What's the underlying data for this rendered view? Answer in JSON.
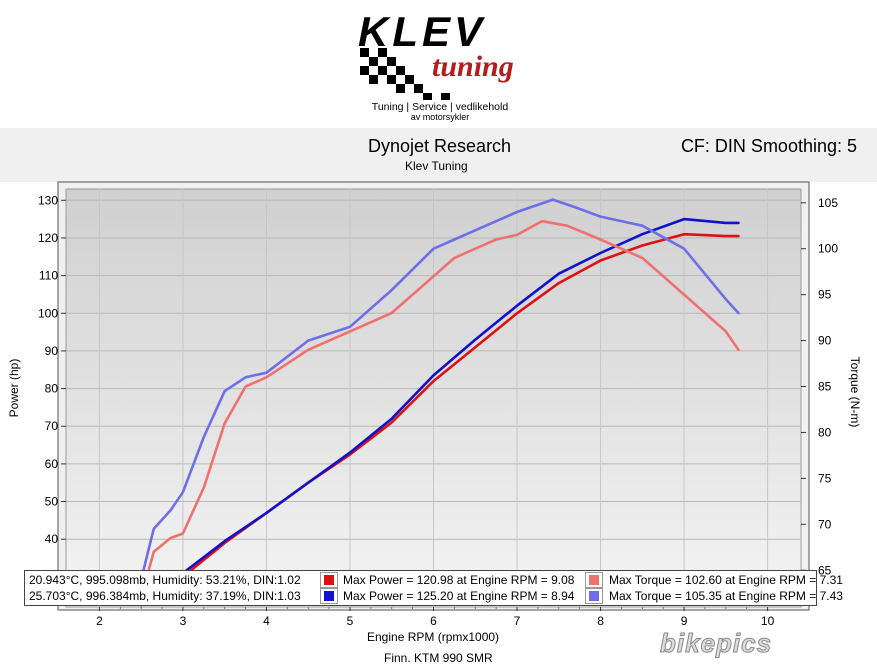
{
  "logo": {
    "brand": "KLEV",
    "script": "tuning",
    "tagline1": "Tuning | Service | vedlikehold",
    "tagline2": "av motorsykler"
  },
  "header": {
    "title": "Dynojet Research",
    "subtitle": "Klev Tuning",
    "cf_info": "CF: DIN Smoothing: 5"
  },
  "footer": {
    "xlabel": "Engine RPM (rpmx1000)",
    "note": "Finn. KTM 990 SMR",
    "watermark": "bikepics"
  },
  "legend": {
    "rows": [
      {
        "conditions": "20.943°C, 995.098mb, Humidity: 53.21%, DIN:1.02",
        "power": "Max Power = 120.98 at Engine RPM = 9.08",
        "torque": "Max Torque = 102.60 at Engine RPM = 7.31",
        "power_color": "#dd1111",
        "torque_color": "#f07070"
      },
      {
        "conditions": "25.703°C, 996.384mb, Humidity: 37.19%, DIN:1.03",
        "power": "Max Power = 125.20 at Engine RPM = 8.94",
        "torque": "Max Torque = 105.35 at Engine RPM = 7.43",
        "power_color": "#1111cc",
        "torque_color": "#6e6ee8"
      }
    ]
  },
  "chart_data": {
    "type": "line",
    "xlabel": "Engine RPM (rpmx1000)",
    "ylabel": "Power (hp)",
    "y2label": "Torque (N-m)",
    "xlim": [
      1.6,
      10.4
    ],
    "ylim": [
      22,
      133
    ],
    "y2lim": [
      61,
      106.5
    ],
    "xticks": [
      2,
      3,
      4,
      5,
      6,
      7,
      8,
      9,
      10
    ],
    "yticks": [
      30,
      40,
      50,
      60,
      70,
      80,
      90,
      100,
      110,
      120,
      130
    ],
    "y2ticks": [
      65,
      70,
      75,
      80,
      85,
      90,
      95,
      100,
      105
    ],
    "grid": true,
    "series": [
      {
        "axis": "left",
        "color": "#dd1111",
        "x": [
          2.5,
          2.75,
          3.0,
          3.5,
          4.0,
          4.5,
          5.0,
          5.5,
          6.0,
          6.5,
          7.0,
          7.5,
          8.0,
          8.5,
          9.0,
          9.5,
          9.65
        ],
        "y": [
          22.5,
          26.0,
          30.0,
          39.0,
          47.0,
          55.0,
          62.5,
          71.0,
          82.0,
          91.0,
          100.0,
          108.0,
          114.0,
          118.0,
          121.0,
          120.5,
          120.5
        ]
      },
      {
        "axis": "left",
        "color": "#1111cc",
        "x": [
          2.5,
          2.75,
          3.0,
          3.5,
          4.0,
          4.5,
          5.0,
          5.5,
          6.0,
          6.5,
          7.0,
          7.5,
          8.0,
          8.5,
          9.0,
          9.5,
          9.65
        ],
        "y": [
          23.5,
          27.5,
          31.0,
          39.5,
          47.0,
          55.0,
          63.0,
          72.0,
          83.5,
          93.0,
          102.0,
          110.5,
          116.0,
          121.0,
          125.0,
          124.0,
          124.0
        ]
      },
      {
        "axis": "right",
        "color": "#f07070",
        "x": [
          2.5,
          2.65,
          2.85,
          3.0,
          3.25,
          3.5,
          3.75,
          4.0,
          4.5,
          5.0,
          5.5,
          6.0,
          6.25,
          6.5,
          6.75,
          7.0,
          7.3,
          7.6,
          8.0,
          8.5,
          9.0,
          9.5,
          9.65
        ],
        "y": [
          62.0,
          67.0,
          68.5,
          69.0,
          74.0,
          81.0,
          85.0,
          86.0,
          89.0,
          91.0,
          93.0,
          97.0,
          99.0,
          100.0,
          101.0,
          101.5,
          103.0,
          102.5,
          101.0,
          99.0,
          95.0,
          91.0,
          89.0
        ]
      },
      {
        "axis": "right",
        "color": "#6e6ee8",
        "x": [
          2.5,
          2.65,
          2.85,
          3.0,
          3.25,
          3.5,
          3.75,
          4.0,
          4.5,
          5.0,
          5.5,
          6.0,
          6.25,
          6.5,
          6.75,
          7.0,
          7.43,
          7.7,
          8.0,
          8.5,
          9.0,
          9.5,
          9.65
        ],
        "y": [
          64.0,
          69.5,
          71.5,
          73.5,
          79.5,
          84.5,
          86.0,
          86.5,
          90.0,
          91.5,
          95.5,
          100.0,
          101.0,
          102.0,
          103.0,
          104.0,
          105.35,
          104.5,
          103.5,
          102.5,
          100.0,
          94.5,
          93.0
        ]
      }
    ]
  }
}
